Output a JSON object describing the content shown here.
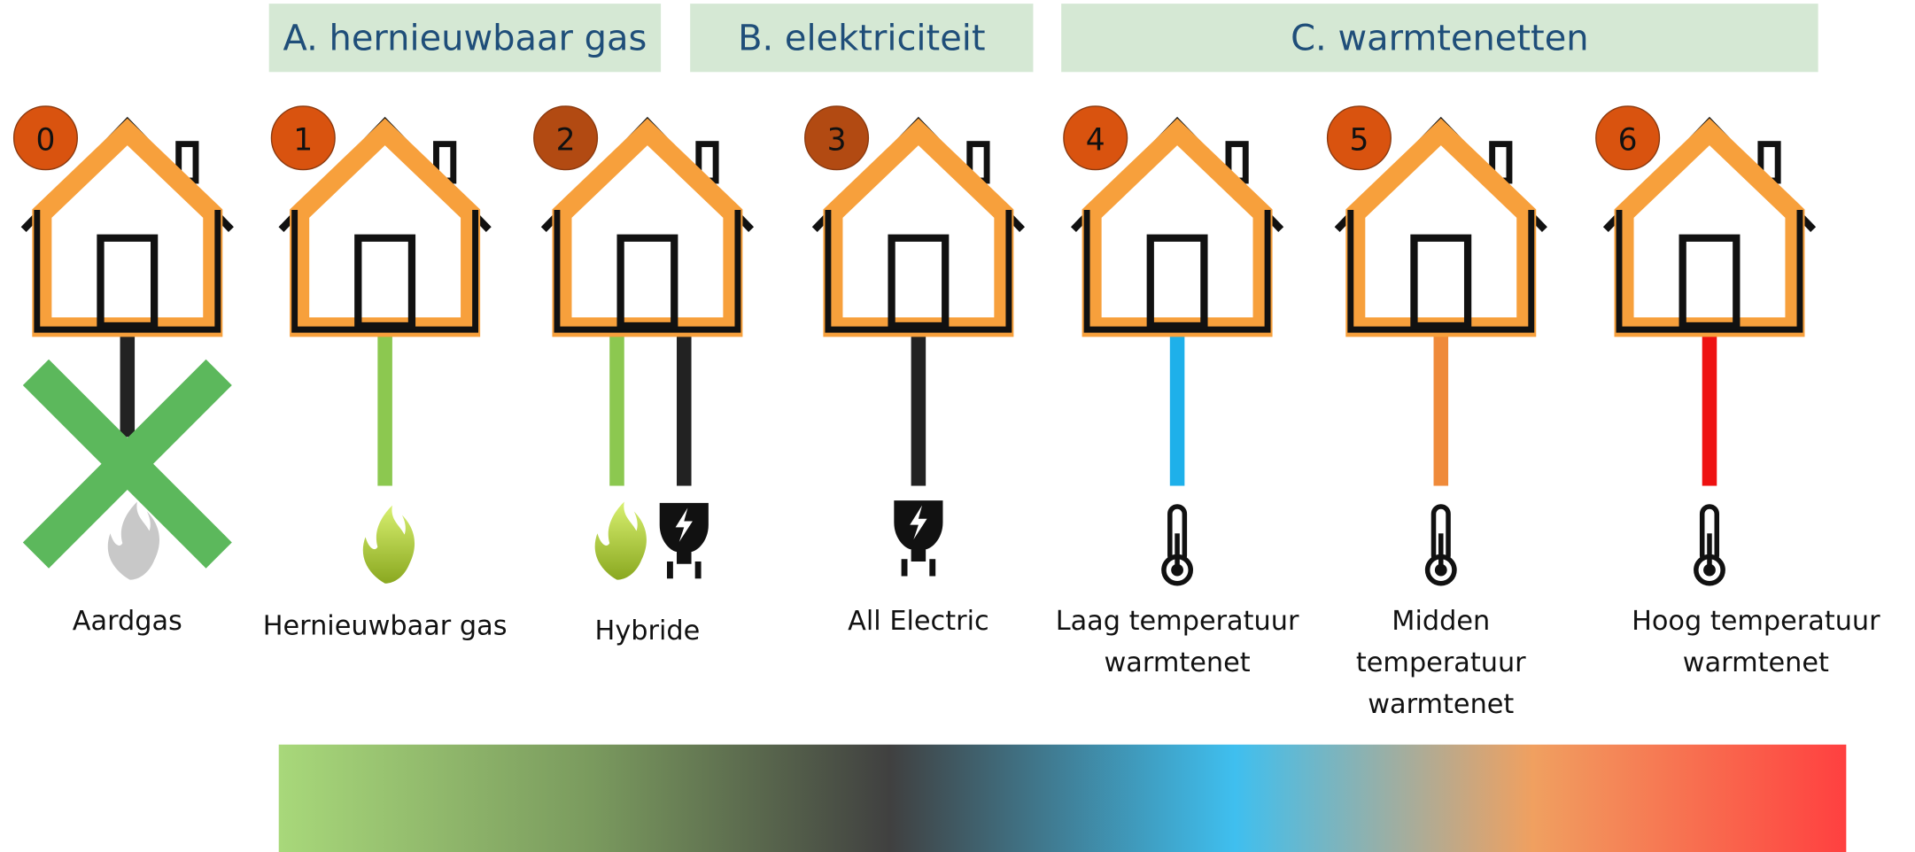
{
  "groups": [
    {
      "label": "A. hernieuwbaar gas"
    },
    {
      "label": "B. elektriciteit"
    },
    {
      "label": "C. warmtenetten"
    }
  ],
  "options": [
    {
      "number": "0",
      "label": [
        "Aardgas"
      ]
    },
    {
      "number": "1",
      "label": [
        "Hernieuwbaar gas"
      ]
    },
    {
      "number": "2",
      "label": [
        "Hybride"
      ]
    },
    {
      "number": "3",
      "label": [
        "All Electric"
      ]
    },
    {
      "number": "4",
      "label": [
        "Laag temperatuur",
        "warmtenet"
      ]
    },
    {
      "number": "5",
      "label": [
        "Midden",
        "temperatuur",
        "warmtenet"
      ]
    },
    {
      "number": "6",
      "label": [
        "Hoog temperatuur",
        "warmtenet"
      ]
    }
  ]
}
